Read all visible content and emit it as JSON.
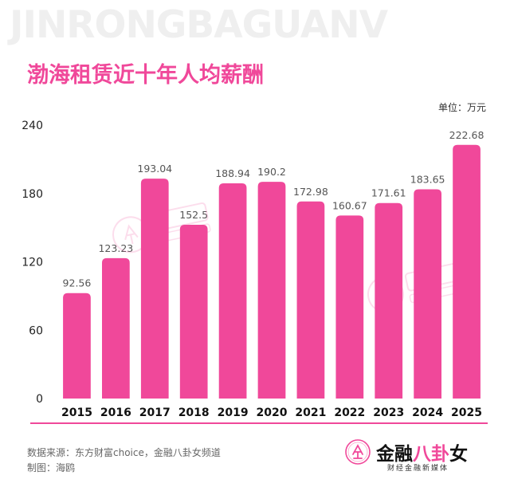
{
  "watermark_banner": "JINRONGBAGUANV",
  "title": "渤海租赁近十年人均薪酬",
  "unit_label": "单位：万元",
  "source_text": "数据来源：东方财富choice，金融八卦女频道",
  "author_text": "制图：海鸥",
  "brand": {
    "name_part1": "金融",
    "name_part2": "八卦",
    "name_part3": "女",
    "tagline": "财经金融新媒体",
    "seal_text": "金八"
  },
  "colors": {
    "bar": "#f0489a",
    "title": "#f0489a",
    "axis": "#f0489a",
    "text": "#222222"
  },
  "chart_data": {
    "type": "bar",
    "title": "渤海租赁近十年人均薪酬",
    "xlabel": "",
    "ylabel": "",
    "unit": "单位：万元",
    "ylim": [
      0,
      240
    ],
    "yticks": [
      0,
      60,
      120,
      180,
      240
    ],
    "grid": false,
    "categories": [
      "2015",
      "2016",
      "2017",
      "2018",
      "2019",
      "2020",
      "2021",
      "2022",
      "2023",
      "2024",
      "2025"
    ],
    "values": [
      92.56,
      123.23,
      193.04,
      152.5,
      188.94,
      190.2,
      172.98,
      160.67,
      171.61,
      183.65,
      222.68
    ],
    "value_labels": [
      "92.56",
      "123.23",
      "193.04",
      "152.5",
      "188.94",
      "190.2",
      "172.98",
      "160.67",
      "171.61",
      "183.65",
      "222.68"
    ]
  }
}
